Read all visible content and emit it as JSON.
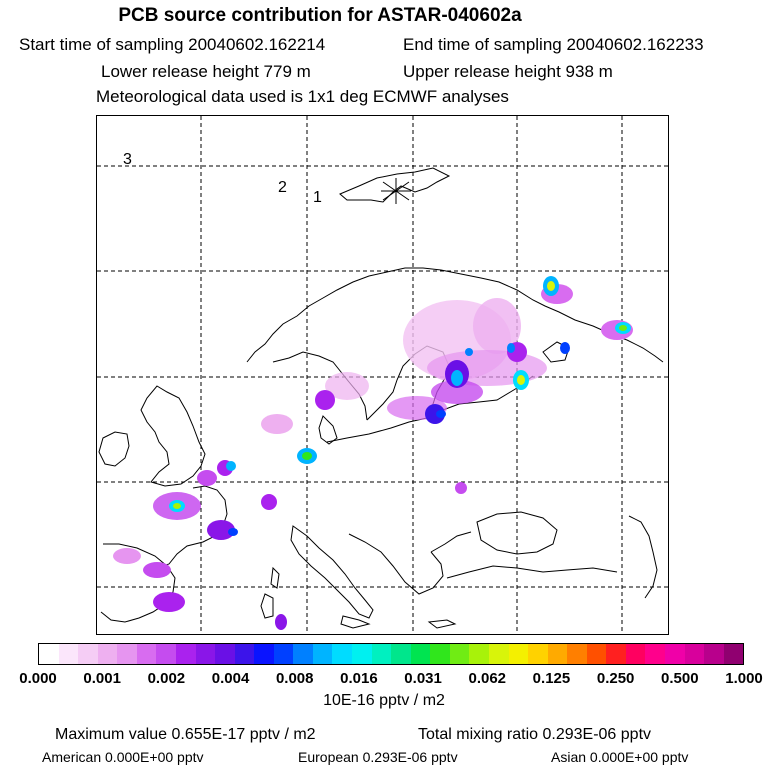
{
  "header": {
    "title": "PCB source contribution for ASTAR-040602a",
    "start_time": "Start time of sampling 20040602.162214",
    "end_time": "End time of sampling 20040602.162233",
    "lower_release": "Lower release height  779 m",
    "upper_release": "Upper release height  938 m",
    "met_data": "Meteorological data used is 1x1 deg ECMWF analyses"
  },
  "map": {
    "labels": [
      "3",
      "2",
      "1"
    ],
    "release_site_icon": "asterisk-star-icon"
  },
  "colorbar": {
    "colors": [
      "#ffffff",
      "#fbe6fb",
      "#f5cdf5",
      "#eeb0f0",
      "#e695f0",
      "#d86cf0",
      "#c54cef",
      "#aa22ee",
      "#8a16e8",
      "#6a10e6",
      "#3c14ea",
      "#0a14ff",
      "#0040ff",
      "#0080ff",
      "#00b4ff",
      "#00dcff",
      "#00f0f0",
      "#00f0c0",
      "#00e68c",
      "#00e450",
      "#30e61c",
      "#70ec14",
      "#a8f20a",
      "#d8f40a",
      "#f4f000",
      "#ffd200",
      "#ffaa00",
      "#ff7f00",
      "#ff5000",
      "#ff2020",
      "#ff0060",
      "#ff008c",
      "#f000a8",
      "#d8009c",
      "#b8008c",
      "#900070"
    ],
    "tick_labels": [
      "0.000",
      "0.001",
      "0.002",
      "0.004",
      "0.008",
      "0.016",
      "0.031",
      "0.062",
      "0.125",
      "0.250",
      "0.500",
      "1.000"
    ],
    "units": "10E-16 pptv / m2"
  },
  "footer": {
    "max_value": "Maximum value  0.655E-17 pptv / m2",
    "total_mixing": "Total mixing ratio  0.293E-06 pptv",
    "american": "American  0.000E+00 pptv",
    "european": "European  0.293E-06 pptv",
    "asian": "Asian  0.000E+00 pptv"
  }
}
